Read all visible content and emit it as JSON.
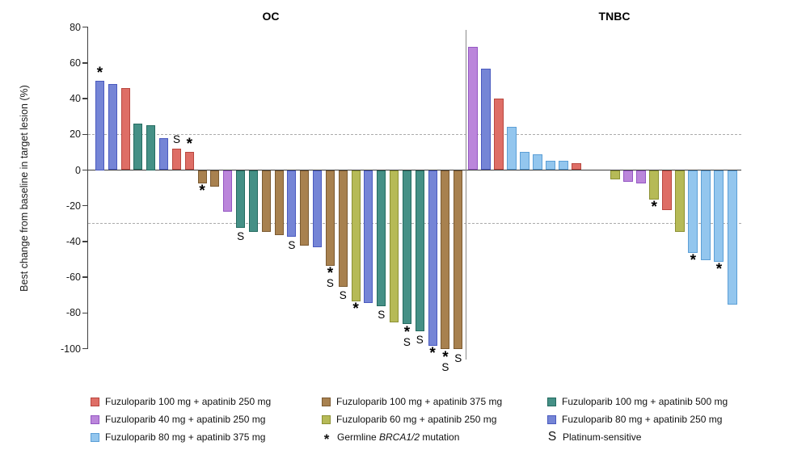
{
  "chart_data": {
    "type": "bar",
    "subtype": "waterfall",
    "ylabel": "Best change from baseline in target lesion (%)",
    "ylim": [
      -100,
      80
    ],
    "yticks": [
      80,
      60,
      40,
      20,
      0,
      -20,
      -40,
      -60,
      -80,
      -100
    ],
    "reference_lines": [
      20,
      -30
    ],
    "grid": "off",
    "groups": {
      "f100a250": {
        "label": "Fuzuloparib 100 mg + apatinib 250 mg",
        "fill": "#DE6E66",
        "stroke": "#B9473F"
      },
      "f40a250": {
        "label": "Fuzuloparib 40 mg + apatinib 250 mg",
        "fill": "#BB86DB",
        "stroke": "#9457C3"
      },
      "b80a375": {
        "label": "Fuzuloparib 80 mg + apatinib 375 mg",
        "fill": "#93C6EE",
        "stroke": "#5C9FD6"
      },
      "f100a375": {
        "label": "Fuzuloparib 100 mg + apatinib 375 mg",
        "fill": "#A8814F",
        "stroke": "#7B5A31"
      },
      "f60a250": {
        "label": "Fuzuloparib 60 mg + apatinib 250 mg",
        "fill": "#B6BA57",
        "stroke": "#8C9134"
      },
      "f100a500": {
        "label": "Fuzuloparib 100 mg + apatinib 500 mg",
        "fill": "#459086",
        "stroke": "#256B60"
      },
      "b80a250": {
        "label": "Fuzuloparib 80 mg + apatinib 250 mg",
        "fill": "#7585D6",
        "stroke": "#4A5ABF"
      }
    },
    "markers": {
      "star": {
        "symbol": "*",
        "meaning_parts": [
          "Germline ",
          "BRCA1/2",
          " mutation"
        ],
        "italic_part": 1
      },
      "s": {
        "symbol": "S",
        "meaning": "Platinum-sensitive"
      }
    },
    "panels": [
      {
        "title": "OC",
        "bars": [
          {
            "value": 50,
            "group": "b80a250",
            "marks": "*"
          },
          {
            "value": 48,
            "group": "b80a250"
          },
          {
            "value": 46,
            "group": "f100a250"
          },
          {
            "value": 26,
            "group": "f100a500"
          },
          {
            "value": 25,
            "group": "f100a500"
          },
          {
            "value": 18,
            "group": "b80a250"
          },
          {
            "value": 12,
            "group": "f100a250",
            "marks": "S"
          },
          {
            "value": 10,
            "group": "f100a250",
            "marks": "*"
          },
          {
            "value": -7,
            "group": "f100a375",
            "marks": "*"
          },
          {
            "value": -9,
            "group": "f100a375"
          },
          {
            "value": -23,
            "group": "f40a250"
          },
          {
            "value": -32,
            "group": "f100a500",
            "marks": "S"
          },
          {
            "value": -34,
            "group": "f100a500"
          },
          {
            "value": -34,
            "group": "f100a375"
          },
          {
            "value": -36,
            "group": "f100a375"
          },
          {
            "value": -37,
            "group": "b80a250",
            "marks": "S"
          },
          {
            "value": -42,
            "group": "f100a375"
          },
          {
            "value": -43,
            "group": "b80a250"
          },
          {
            "value": -53,
            "group": "f100a375",
            "marks": "*S"
          },
          {
            "value": -65,
            "group": "f100a375",
            "marks": "S"
          },
          {
            "value": -73,
            "group": "f60a250",
            "marks": "*"
          },
          {
            "value": -74,
            "group": "b80a250"
          },
          {
            "value": -76,
            "group": "f100a500",
            "marks": "S"
          },
          {
            "value": -85,
            "group": "f60a250"
          },
          {
            "value": -86,
            "group": "f100a500",
            "marks": "*S"
          },
          {
            "value": -90,
            "group": "f100a500",
            "marks": "S"
          },
          {
            "value": -98,
            "group": "b80a250",
            "marks": "*"
          },
          {
            "value": -100,
            "group": "f100a375",
            "marks": "*S"
          },
          {
            "value": -100,
            "group": "f100a375",
            "marks": "S"
          }
        ]
      },
      {
        "title": "TNBC",
        "gap_after": 9,
        "gap_slots": 2,
        "bars": [
          {
            "value": 69,
            "group": "f40a250"
          },
          {
            "value": 57,
            "group": "b80a250"
          },
          {
            "value": 40,
            "group": "f100a250"
          },
          {
            "value": 24,
            "group": "b80a375"
          },
          {
            "value": 10,
            "group": "b80a375"
          },
          {
            "value": 9,
            "group": "b80a375"
          },
          {
            "value": 5,
            "group": "b80a375"
          },
          {
            "value": 5,
            "group": "b80a375"
          },
          {
            "value": 4,
            "group": "f100a250"
          },
          {
            "value": -5,
            "group": "f60a250"
          },
          {
            "value": -6,
            "group": "f40a250"
          },
          {
            "value": -7,
            "group": "f40a250"
          },
          {
            "value": -16,
            "group": "f60a250",
            "marks": "*"
          },
          {
            "value": -22,
            "group": "f100a250"
          },
          {
            "value": -34,
            "group": "f60a250"
          },
          {
            "value": -46,
            "group": "b80a375",
            "marks": "*"
          },
          {
            "value": -50,
            "group": "b80a375"
          },
          {
            "value": -51,
            "group": "b80a375",
            "marks": "*"
          },
          {
            "value": -75,
            "group": "b80a375"
          }
        ]
      }
    ],
    "legend": {
      "columns": [
        {
          "items": [
            {
              "type": "swatch",
              "group": "f100a250"
            },
            {
              "type": "swatch",
              "group": "f40a250"
            },
            {
              "type": "swatch",
              "group": "b80a375"
            }
          ]
        },
        {
          "items": [
            {
              "type": "swatch",
              "group": "f100a375"
            },
            {
              "type": "swatch",
              "group": "f60a250"
            },
            {
              "type": "marker",
              "marker": "star"
            }
          ]
        },
        {
          "items": [
            {
              "type": "swatch",
              "group": "f100a500"
            },
            {
              "type": "swatch",
              "group": "b80a250"
            },
            {
              "type": "marker",
              "marker": "s"
            }
          ]
        }
      ]
    }
  }
}
